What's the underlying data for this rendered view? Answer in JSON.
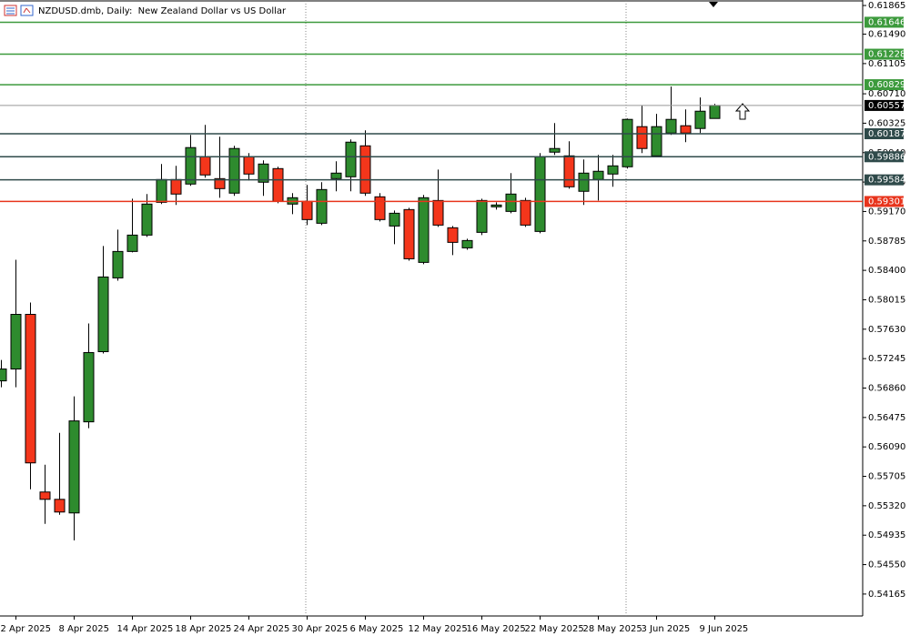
{
  "chart_data": {
    "type": "candlestick",
    "title": "NZDUSD.dmb, Daily:  New Zealand Dollar vs US Dollar",
    "categories": [
      null,
      "2 Apr 2025",
      null,
      null,
      null,
      "8 Apr 2025",
      null,
      null,
      null,
      "14 Apr 2025",
      null,
      null,
      null,
      "18 Apr 2025",
      null,
      null,
      null,
      "24 Apr 2025",
      null,
      null,
      null,
      "30 Apr 2025",
      null,
      null,
      null,
      "6 May 2025",
      null,
      null,
      null,
      "12 May 2025",
      null,
      null,
      null,
      "16 May 2025",
      null,
      null,
      null,
      "22 May 2025",
      null,
      null,
      null,
      "28 May 2025",
      null,
      null,
      null,
      "3 Jun 2025",
      null,
      null,
      null,
      "9 Jun 2025"
    ],
    "open": [
      0.56954,
      0.57109,
      0.57824,
      0.555,
      0.55404,
      0.55226,
      0.56418,
      0.57336,
      0.58301,
      0.58647,
      0.58861,
      0.5929,
      0.59588,
      0.59529,
      0.59886,
      0.596,
      0.5941,
      0.59886,
      0.59553,
      0.59731,
      0.59267,
      0.59302,
      0.59016,
      0.596,
      0.59624,
      0.60029,
      0.59362,
      0.5898,
      0.59195,
      0.58504,
      0.59314,
      0.58957,
      0.58694,
      0.58897,
      0.59231,
      0.59171,
      0.59314,
      0.58909,
      0.59946,
      0.59898,
      0.59434,
      0.59588,
      0.5966,
      0.59755,
      0.6028,
      0.59898,
      0.60196,
      0.60292,
      0.60256,
      0.60387
    ],
    "high": [
      0.57228,
      0.58539,
      0.57979,
      0.55857,
      0.56274,
      0.56751,
      0.57705,
      0.58718,
      0.58933,
      0.59338,
      0.59398,
      0.59791,
      0.59767,
      0.60172,
      0.60303,
      0.60149,
      0.60029,
      0.59934,
      0.59839,
      0.59755,
      0.5941,
      0.59517,
      0.59553,
      0.59827,
      0.60113,
      0.60232,
      0.5941,
      0.59183,
      0.59219,
      0.59386,
      0.59719,
      0.5898,
      0.58814,
      0.59338,
      0.5929,
      0.59672,
      0.5935,
      0.59934,
      0.60327,
      0.60089,
      0.59851,
      0.5991,
      0.5991,
      0.60387,
      0.60554,
      0.60447,
      0.60804,
      0.60506,
      0.60661,
      0.60578
    ],
    "low": [
      0.5687,
      0.5687,
      0.55535,
      0.55083,
      0.55202,
      0.54868,
      0.56334,
      0.57312,
      0.58265,
      0.58635,
      0.58837,
      0.59267,
      0.59255,
      0.59505,
      0.59612,
      0.5935,
      0.59374,
      0.59576,
      0.59374,
      0.59278,
      0.59135,
      0.58992,
      0.58992,
      0.59434,
      0.59434,
      0.59374,
      0.5904,
      0.58742,
      0.58527,
      0.5848,
      0.58968,
      0.58599,
      0.5867,
      0.58861,
      0.59195,
      0.59147,
      0.58968,
      0.58885,
      0.5991,
      0.59469,
      0.59255,
      0.59314,
      0.59493,
      0.59731,
      0.59934,
      0.59886,
      0.60172,
      0.60077,
      0.60196,
      0.60387
    ],
    "close": [
      0.57109,
      0.57824,
      0.55881,
      0.55404,
      0.55238,
      0.5643,
      0.57324,
      0.58313,
      0.58647,
      0.58861,
      0.59267,
      0.59588,
      0.59398,
      0.60006,
      0.59648,
      0.59469,
      0.59994,
      0.5966,
      0.59791,
      0.59302,
      0.5935,
      0.59064,
      0.59457,
      0.59672,
      0.60077,
      0.5941,
      0.59064,
      0.59147,
      0.58551,
      0.5935,
      0.58992,
      0.58766,
      0.5879,
      0.59314,
      0.59255,
      0.59398,
      0.58992,
      0.59886,
      0.59994,
      0.59493,
      0.59672,
      0.59696,
      0.59767,
      0.60375,
      0.59994,
      0.6028,
      0.60375,
      0.60196,
      0.60482,
      0.60557
    ],
    "up_color": "#2e8b2e",
    "down_color": "#f4361b",
    "ylim": [
      0.53878,
      0.61925
    ],
    "yticks": [
      0.61865,
      {
        "value": 0.6149,
        "label": "0.61490"
      },
      0.61105,
      {
        "value": 0.6071,
        "label": "0.60710"
      },
      0.60325,
      {
        "value": 0.5994,
        "label": "0.59940"
      },
      0.59555,
      {
        "value": 0.5917,
        "label": "0.59170"
      },
      0.58785,
      {
        "value": 0.584,
        "label": "0.58400"
      },
      0.58015,
      {
        "value": 0.5763,
        "label": "0.57630"
      },
      0.57245,
      {
        "value": 0.5686,
        "label": "0.56860"
      },
      0.56475,
      {
        "value": 0.5609,
        "label": "0.56090"
      },
      0.55705,
      {
        "value": 0.5532,
        "label": "0.55320"
      },
      0.54935,
      {
        "value": 0.5455,
        "label": "0.54550"
      },
      0.54165
    ],
    "levels": [
      {
        "value": 0.61646,
        "color": "#3c9a3c"
      },
      {
        "value": 0.61228,
        "color": "#3c9a3c"
      },
      {
        "value": 0.60829,
        "color": "#3c9a3c"
      },
      {
        "value": 0.60557,
        "color": "#000000"
      },
      {
        "value": 0.60187,
        "color": "#2f4a4a"
      },
      {
        "value": 0.59886,
        "color": "#2f4a4a"
      },
      {
        "value": 0.59584,
        "color": "#2f4a4a"
      },
      {
        "value": 0.59301,
        "color": "#e8341c"
      }
    ]
  }
}
